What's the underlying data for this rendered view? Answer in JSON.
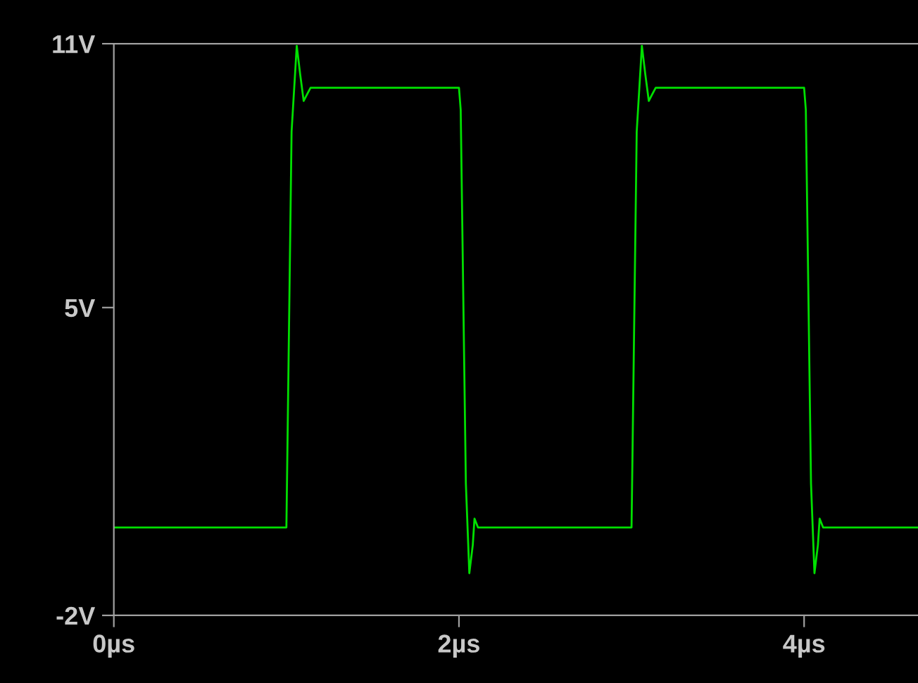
{
  "chart_data": {
    "type": "line",
    "x": [
      0,
      1.0,
      1.03,
      1.06,
      1.08,
      1.1,
      1.12,
      1.14,
      2.0,
      2.01,
      2.04,
      2.06,
      2.08,
      2.09,
      2.11,
      3.0,
      3.03,
      3.06,
      3.08,
      3.1,
      3.12,
      3.14,
      4.0,
      4.01,
      4.04,
      4.06,
      4.08,
      4.09,
      4.11,
      4.66
    ],
    "series": [
      {
        "color": "#00e000",
        "values": [
          0,
          0,
          9.0,
          10.95,
          10.3,
          9.7,
          9.85,
          10,
          10,
          9.5,
          1.0,
          -1.04,
          -0.4,
          0.2,
          0,
          0,
          9.0,
          10.95,
          10.3,
          9.7,
          9.85,
          10,
          10,
          9.5,
          1.0,
          -1.04,
          -0.4,
          0.2,
          0,
          0
        ]
      }
    ],
    "xlim": [
      0,
      4.66
    ],
    "ylim": [
      -2,
      11
    ],
    "xticks": [
      {
        "value": 0,
        "label": "0µs"
      },
      {
        "value": 2,
        "label": "2µs"
      },
      {
        "value": 4,
        "label": "4µs"
      }
    ],
    "yticks": [
      {
        "value": -2,
        "label": "-2V"
      },
      {
        "value": 5,
        "label": "5V"
      },
      {
        "value": 11,
        "label": "11V"
      }
    ],
    "grid": false,
    "marker": "none",
    "line_style": "solid"
  }
}
